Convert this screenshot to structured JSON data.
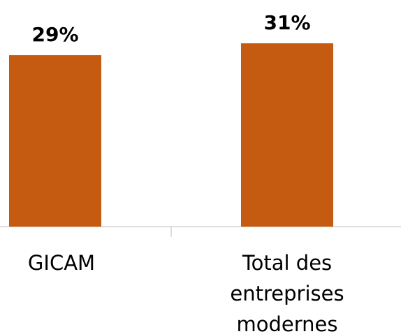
{
  "chart_data": {
    "type": "bar",
    "categories": [
      "GICAM",
      "Total des entreprises modernes"
    ],
    "values": [
      29,
      31
    ],
    "value_labels": [
      "29%",
      "31%"
    ],
    "color": "#c55a11"
  }
}
